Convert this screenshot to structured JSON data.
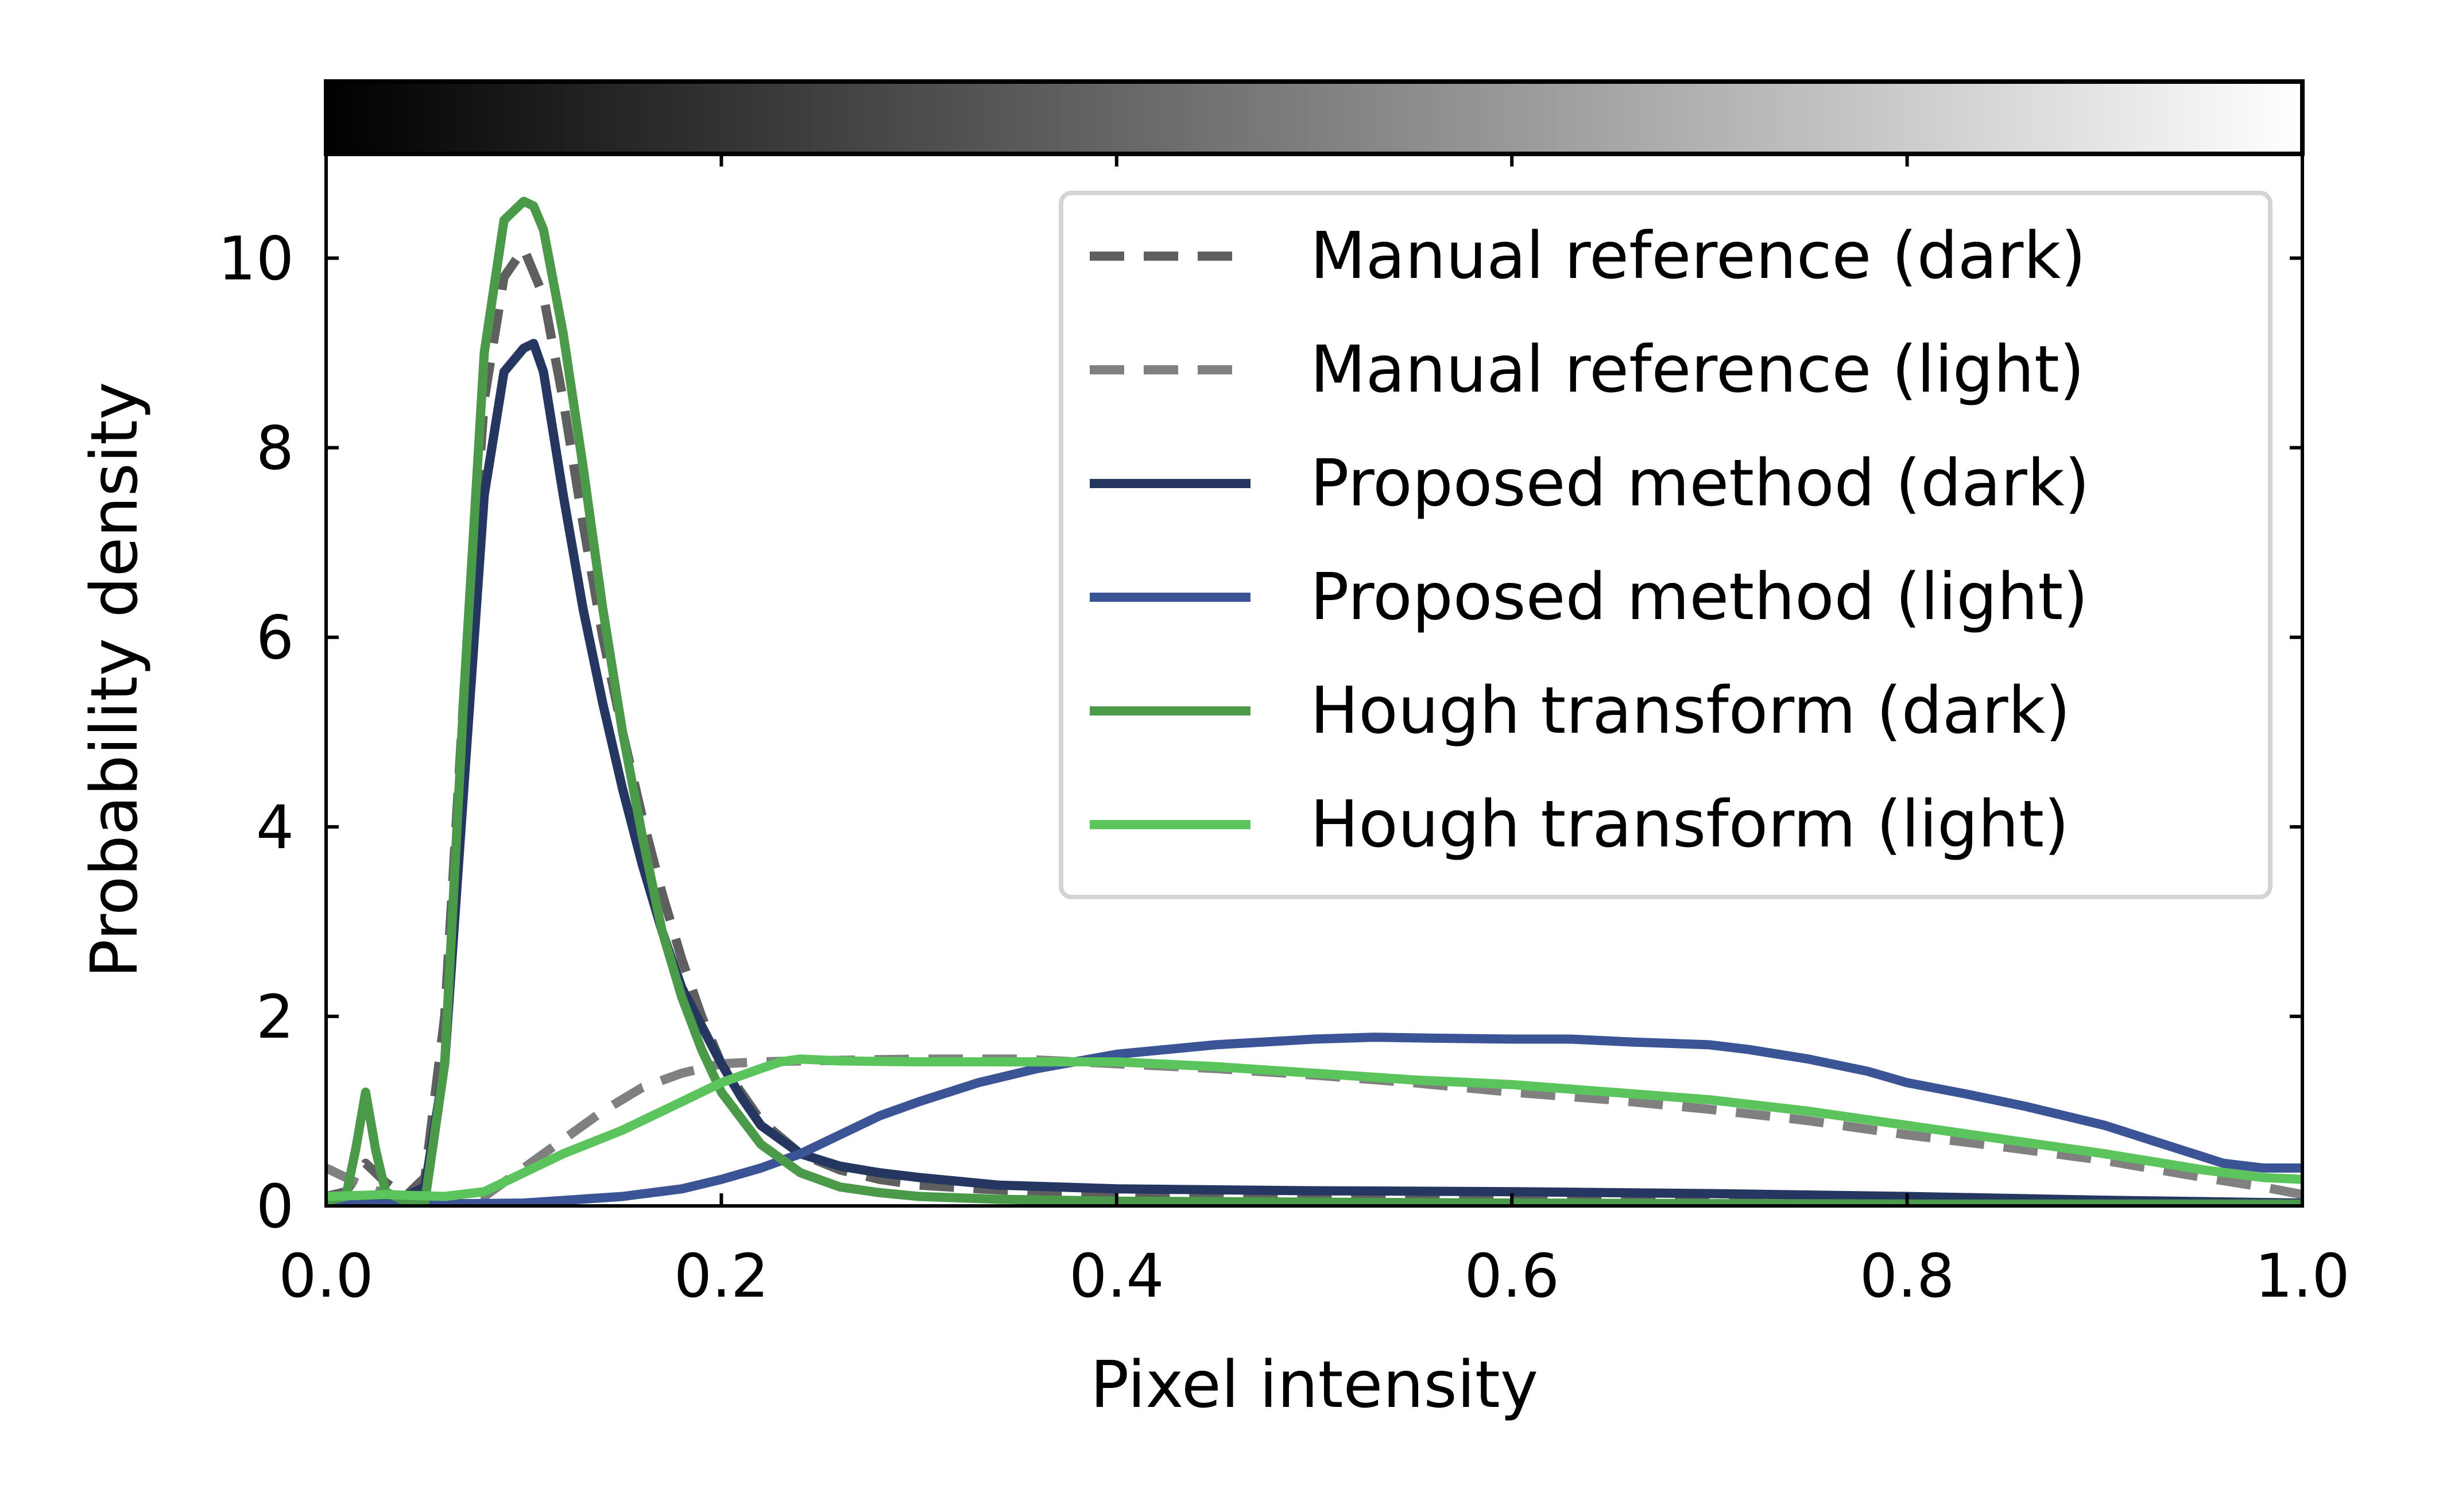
{
  "chart_data": {
    "type": "line",
    "title": "",
    "xlabel": "Pixel intensity",
    "ylabel": "Probability density",
    "xlim": [
      0.0,
      1.0
    ],
    "ylim": [
      0,
      11.1
    ],
    "xticks": [
      0.0,
      0.2,
      0.4,
      0.6,
      0.8,
      1.0
    ],
    "xtick_labels": [
      "0.0",
      "0.2",
      "0.4",
      "0.6",
      "0.8",
      "1.0"
    ],
    "yticks": [
      0,
      2,
      4,
      6,
      8,
      10
    ],
    "ytick_labels": [
      "0",
      "2",
      "4",
      "6",
      "8",
      "10"
    ],
    "grid": false,
    "legend_position": "top-right",
    "colorbar": {
      "orientation": "horizontal",
      "placement": "top",
      "from_color": "#000000",
      "to_color": "#ffffff",
      "range": [
        0.0,
        1.0
      ]
    },
    "series": [
      {
        "name": "Manual reference (dark)",
        "color": "#5f5f5f",
        "dash": true,
        "x": [
          0.0,
          0.01,
          0.02,
          0.03,
          0.04,
          0.05,
          0.06,
          0.07,
          0.08,
          0.09,
          0.1,
          0.11,
          0.12,
          0.13,
          0.14,
          0.15,
          0.16,
          0.17,
          0.18,
          0.19,
          0.2,
          0.22,
          0.24,
          0.26,
          0.28,
          0.3,
          0.33,
          0.36,
          0.4,
          0.45,
          0.5,
          0.55,
          0.6,
          0.7,
          0.8,
          0.9,
          1.0
        ],
        "y": [
          0.1,
          0.15,
          0.45,
          0.25,
          0.1,
          0.3,
          2.0,
          5.5,
          8.5,
          9.8,
          10.1,
          9.6,
          8.5,
          7.2,
          6.0,
          5.0,
          4.1,
          3.3,
          2.6,
          2.0,
          1.5,
          0.9,
          0.55,
          0.38,
          0.28,
          0.22,
          0.18,
          0.15,
          0.13,
          0.12,
          0.11,
          0.1,
          0.09,
          0.07,
          0.05,
          0.03,
          0.02
        ]
      },
      {
        "name": "Manual reference (light)",
        "color": "#808080",
        "dash": true,
        "x": [
          0.0,
          0.02,
          0.04,
          0.06,
          0.08,
          0.1,
          0.12,
          0.14,
          0.16,
          0.18,
          0.2,
          0.22,
          0.24,
          0.3,
          0.35,
          0.4,
          0.45,
          0.5,
          0.55,
          0.6,
          0.65,
          0.7,
          0.75,
          0.8,
          0.85,
          0.9,
          0.95,
          0.98,
          1.0
        ],
        "y": [
          0.4,
          0.2,
          0.05,
          0.02,
          0.1,
          0.4,
          0.7,
          1.0,
          1.25,
          1.4,
          1.5,
          1.52,
          1.53,
          1.55,
          1.55,
          1.5,
          1.45,
          1.38,
          1.3,
          1.2,
          1.12,
          1.02,
          0.9,
          0.75,
          0.62,
          0.48,
          0.3,
          0.2,
          0.12
        ]
      },
      {
        "name": "Proposed method (dark)",
        "color": "#253660",
        "dash": false,
        "x": [
          0.0,
          0.02,
          0.04,
          0.05,
          0.06,
          0.07,
          0.08,
          0.09,
          0.1,
          0.105,
          0.11,
          0.12,
          0.13,
          0.14,
          0.15,
          0.16,
          0.17,
          0.18,
          0.19,
          0.2,
          0.21,
          0.22,
          0.24,
          0.26,
          0.28,
          0.3,
          0.34,
          0.4,
          0.5,
          0.6,
          0.7,
          0.8,
          0.9,
          1.0
        ],
        "y": [
          0.02,
          0.03,
          0.1,
          0.2,
          1.5,
          4.5,
          7.5,
          8.8,
          9.05,
          9.1,
          8.8,
          7.5,
          6.3,
          5.3,
          4.4,
          3.6,
          2.9,
          2.3,
          1.9,
          1.5,
          1.15,
          0.85,
          0.55,
          0.42,
          0.35,
          0.3,
          0.22,
          0.18,
          0.16,
          0.15,
          0.13,
          0.1,
          0.06,
          0.03
        ]
      },
      {
        "name": "Proposed method (light)",
        "color": "#3b5495",
        "dash": false,
        "x": [
          0.0,
          0.1,
          0.15,
          0.18,
          0.2,
          0.22,
          0.24,
          0.26,
          0.28,
          0.3,
          0.33,
          0.36,
          0.4,
          0.45,
          0.5,
          0.53,
          0.56,
          0.6,
          0.63,
          0.66,
          0.7,
          0.72,
          0.75,
          0.78,
          0.8,
          0.83,
          0.86,
          0.9,
          0.93,
          0.96,
          0.98,
          1.0
        ],
        "y": [
          0.01,
          0.03,
          0.1,
          0.18,
          0.28,
          0.4,
          0.55,
          0.75,
          0.95,
          1.1,
          1.3,
          1.45,
          1.6,
          1.7,
          1.76,
          1.78,
          1.77,
          1.76,
          1.76,
          1.73,
          1.7,
          1.65,
          1.55,
          1.42,
          1.3,
          1.18,
          1.05,
          0.85,
          0.65,
          0.45,
          0.4,
          0.4
        ]
      },
      {
        "name": "Hough transform (dark)",
        "color": "#4a9a4a",
        "dash": false,
        "x": [
          0.0,
          0.01,
          0.015,
          0.02,
          0.025,
          0.03,
          0.04,
          0.05,
          0.06,
          0.07,
          0.08,
          0.09,
          0.1,
          0.105,
          0.11,
          0.12,
          0.13,
          0.14,
          0.15,
          0.16,
          0.17,
          0.18,
          0.19,
          0.2,
          0.22,
          0.24,
          0.26,
          0.28,
          0.3,
          0.34,
          0.4,
          0.5,
          0.6,
          0.8,
          1.0
        ],
        "y": [
          0.05,
          0.1,
          0.6,
          1.2,
          0.6,
          0.15,
          0.05,
          0.05,
          1.5,
          5.5,
          9.0,
          10.4,
          10.6,
          10.55,
          10.3,
          9.2,
          7.8,
          6.3,
          5.0,
          3.9,
          2.9,
          2.2,
          1.65,
          1.2,
          0.65,
          0.35,
          0.2,
          0.14,
          0.1,
          0.07,
          0.05,
          0.04,
          0.03,
          0.02,
          0.02
        ]
      },
      {
        "name": "Hough transform (light)",
        "color": "#5cc45c",
        "dash": false,
        "x": [
          0.0,
          0.03,
          0.06,
          0.08,
          0.1,
          0.12,
          0.15,
          0.18,
          0.2,
          0.22,
          0.23,
          0.24,
          0.26,
          0.3,
          0.35,
          0.4,
          0.45,
          0.5,
          0.55,
          0.6,
          0.65,
          0.7,
          0.75,
          0.8,
          0.85,
          0.9,
          0.95,
          0.98,
          1.0
        ],
        "y": [
          0.1,
          0.12,
          0.1,
          0.15,
          0.35,
          0.55,
          0.8,
          1.1,
          1.3,
          1.45,
          1.52,
          1.55,
          1.53,
          1.52,
          1.52,
          1.52,
          1.47,
          1.4,
          1.33,
          1.28,
          1.2,
          1.12,
          1.0,
          0.85,
          0.7,
          0.55,
          0.38,
          0.3,
          0.28
        ]
      }
    ]
  }
}
